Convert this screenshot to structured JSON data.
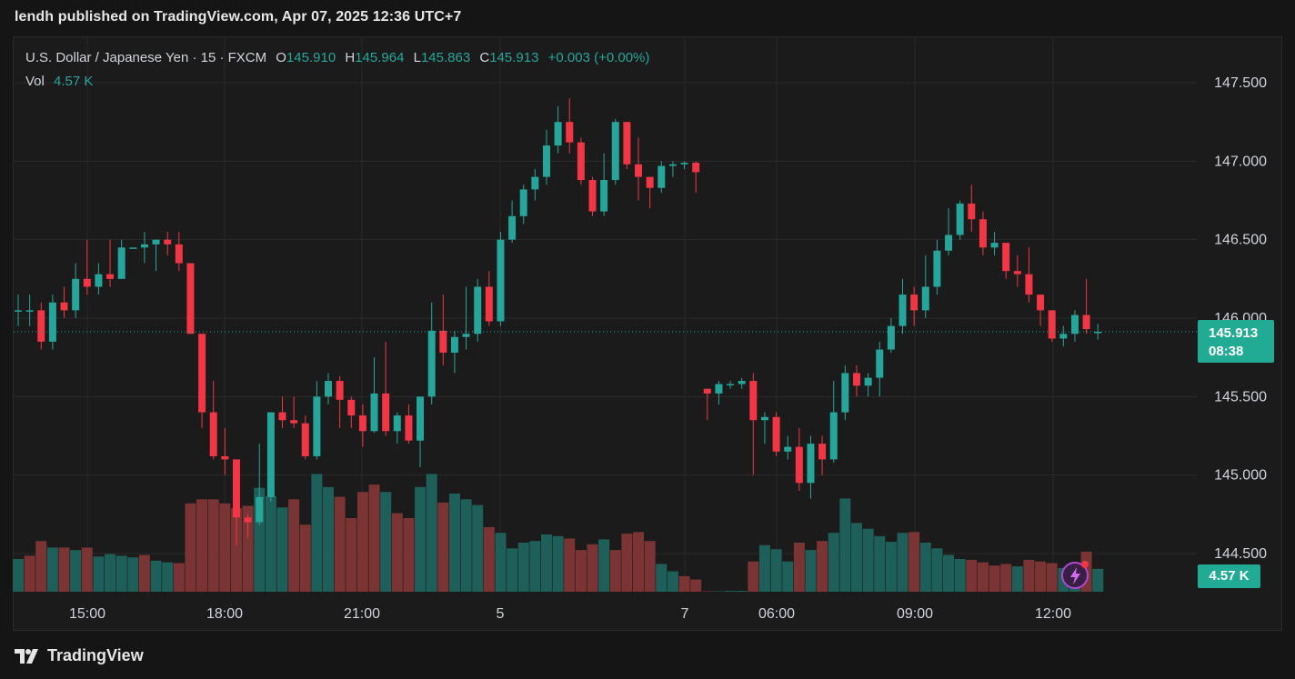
{
  "header": {
    "publish_text": "lendh published on TradingView.com, Apr 07, 2025 12:36 UTC+7"
  },
  "legend": {
    "symbol": "U.S. Dollar / Japanese Yen · 15 · FXCM",
    "open_label": "O",
    "open": "145.910",
    "high_label": "H",
    "high": "145.964",
    "low_label": "L",
    "low": "145.863",
    "close_label": "C",
    "close": "145.913",
    "change": "+0.003 (+0.00%)",
    "vol_label": "Vol",
    "vol_value": "4.57 K"
  },
  "price_tag": {
    "price": "145.913",
    "countdown": "08:38"
  },
  "volume_tag": "4.57 K",
  "footer": {
    "brand": "TradingView"
  },
  "colors": {
    "up": "#26a69a",
    "down": "#f23645",
    "vol_up": "#1f5f5a",
    "vol_down": "#7a3434",
    "background": "#1b1b1b",
    "grid": "#2a2a2a"
  },
  "icons": [
    "tradingview-logo-icon",
    "lightning-alert-icon"
  ],
  "chart_data": {
    "type": "candlestick",
    "symbol": "USDJPY",
    "interval": "15",
    "y_axis_ticks": [
      "147.500",
      "147.000",
      "146.500",
      "146.000",
      "145.500",
      "145.000",
      "144.500"
    ],
    "x_axis_ticks": [
      "15:00",
      "18:00",
      "21:00",
      "5",
      "7",
      "06:00",
      "09:00",
      "12:00"
    ],
    "last_price": 145.913,
    "candles": [
      [
        146.05,
        146.05,
        146.15,
        145.95
      ],
      [
        146.05,
        146.05,
        146.15,
        145.95
      ],
      [
        146.05,
        145.85,
        146.1,
        145.8
      ],
      [
        145.85,
        146.1,
        146.15,
        145.8
      ],
      [
        146.1,
        146.05,
        146.2,
        146.0
      ],
      [
        146.05,
        146.25,
        146.35,
        146.0
      ],
      [
        146.25,
        146.2,
        146.5,
        146.15
      ],
      [
        146.2,
        146.28,
        146.35,
        146.15
      ],
      [
        146.28,
        146.25,
        146.5,
        146.2
      ],
      [
        146.25,
        146.45,
        146.5,
        146.3
      ],
      [
        146.45,
        146.45,
        146.45,
        146.45
      ],
      [
        146.45,
        146.47,
        146.55,
        146.35
      ],
      [
        146.47,
        146.5,
        146.5,
        146.3
      ],
      [
        146.5,
        146.47,
        146.55,
        146.4
      ],
      [
        146.47,
        146.35,
        146.55,
        146.3
      ],
      [
        146.35,
        145.9,
        146.35,
        145.9
      ],
      [
        145.9,
        145.4,
        145.9,
        145.3
      ],
      [
        145.4,
        145.12,
        145.6,
        145.1
      ],
      [
        145.12,
        145.1,
        145.3,
        145.0
      ],
      [
        145.1,
        144.73,
        145.1,
        144.55
      ],
      [
        144.73,
        144.7,
        144.75,
        144.6
      ],
      [
        144.7,
        144.86,
        145.2,
        144.68
      ],
      [
        144.86,
        145.4,
        145.4,
        144.83
      ],
      [
        145.4,
        145.35,
        145.5,
        145.3
      ],
      [
        145.35,
        145.33,
        145.5,
        145.3
      ],
      [
        145.33,
        145.12,
        145.38,
        145.1
      ],
      [
        145.12,
        145.5,
        145.6,
        145.1
      ],
      [
        145.5,
        145.6,
        145.65,
        145.45
      ],
      [
        145.6,
        145.48,
        145.63,
        145.3
      ],
      [
        145.48,
        145.38,
        145.5,
        145.3
      ],
      [
        145.38,
        145.28,
        145.45,
        145.18
      ],
      [
        145.28,
        145.52,
        145.75,
        145.27
      ],
      [
        145.52,
        145.28,
        145.85,
        145.25
      ],
      [
        145.28,
        145.38,
        145.4,
        145.2
      ],
      [
        145.38,
        145.22,
        145.45,
        145.2
      ],
      [
        145.22,
        145.5,
        145.5,
        145.05
      ],
      [
        145.5,
        145.92,
        146.1,
        145.45
      ],
      [
        145.92,
        145.78,
        146.15,
        145.7
      ],
      [
        145.78,
        145.88,
        145.92,
        145.65
      ],
      [
        145.88,
        145.9,
        146.2,
        145.8
      ],
      [
        145.9,
        146.2,
        146.25,
        145.85
      ],
      [
        146.2,
        145.98,
        146.3,
        145.95
      ],
      [
        145.98,
        146.5,
        146.55,
        145.95
      ],
      [
        146.5,
        146.65,
        146.75,
        146.48
      ],
      [
        146.65,
        146.82,
        146.85,
        146.6
      ],
      [
        146.82,
        146.9,
        146.95,
        146.75
      ],
      [
        146.9,
        147.1,
        147.2,
        146.85
      ],
      [
        147.1,
        147.25,
        147.35,
        147.05
      ],
      [
        147.25,
        147.12,
        147.4,
        147.05
      ],
      [
        147.12,
        146.88,
        147.15,
        146.85
      ],
      [
        146.88,
        146.68,
        146.9,
        146.65
      ],
      [
        146.68,
        146.88,
        147.05,
        146.65
      ],
      [
        146.88,
        147.25,
        147.27,
        146.85
      ],
      [
        147.25,
        146.98,
        147.25,
        146.95
      ],
      [
        146.98,
        146.9,
        147.15,
        146.75
      ],
      [
        146.9,
        146.83,
        146.9,
        146.7
      ],
      [
        146.83,
        146.97,
        147.0,
        146.8
      ],
      [
        146.97,
        146.98,
        147.0,
        146.9
      ],
      [
        146.98,
        146.99,
        147.0,
        146.95
      ],
      [
        146.99,
        146.93,
        147.0,
        146.8
      ],
      [
        145.55,
        145.52,
        145.55,
        145.35
      ],
      [
        145.52,
        145.58,
        145.6,
        145.45
      ],
      [
        145.58,
        145.58,
        145.6,
        145.55
      ],
      [
        145.58,
        145.6,
        145.62,
        145.55
      ],
      [
        145.6,
        145.35,
        145.65,
        145.0
      ],
      [
        145.35,
        145.37,
        145.4,
        145.2
      ],
      [
        145.37,
        145.15,
        145.4,
        145.12
      ],
      [
        145.15,
        145.18,
        145.25,
        145.1
      ],
      [
        145.18,
        144.95,
        145.3,
        144.9
      ],
      [
        144.95,
        145.2,
        145.25,
        144.85
      ],
      [
        145.2,
        145.1,
        145.25,
        145.0
      ],
      [
        145.1,
        145.4,
        145.6,
        145.08
      ],
      [
        145.4,
        145.65,
        145.7,
        145.35
      ],
      [
        145.65,
        145.57,
        145.7,
        145.5
      ],
      [
        145.57,
        145.62,
        145.65,
        145.5
      ],
      [
        145.62,
        145.8,
        145.85,
        145.5
      ],
      [
        145.8,
        145.95,
        146.0,
        145.78
      ],
      [
        145.95,
        146.15,
        146.25,
        145.9
      ],
      [
        146.15,
        146.05,
        146.2,
        145.95
      ],
      [
        146.05,
        146.2,
        146.4,
        146.0
      ],
      [
        146.2,
        146.43,
        146.5,
        146.15
      ],
      [
        146.43,
        146.53,
        146.7,
        146.4
      ],
      [
        146.53,
        146.73,
        146.75,
        146.5
      ],
      [
        146.73,
        146.63,
        146.85,
        146.55
      ],
      [
        146.63,
        146.45,
        146.68,
        146.4
      ],
      [
        146.45,
        146.48,
        146.55,
        146.4
      ],
      [
        146.48,
        146.3,
        146.48,
        146.25
      ],
      [
        146.3,
        146.28,
        146.4,
        146.2
      ],
      [
        146.28,
        146.15,
        146.45,
        146.1
      ],
      [
        146.15,
        146.05,
        146.15,
        145.95
      ],
      [
        146.05,
        145.87,
        146.05,
        145.85
      ],
      [
        145.87,
        145.9,
        145.95,
        145.82
      ],
      [
        145.9,
        146.02,
        146.05,
        145.85
      ],
      [
        146.02,
        145.93,
        146.25,
        145.9
      ],
      [
        145.91,
        145.913,
        145.964,
        145.863
      ]
    ],
    "volume": [
      [
        40,
        "up"
      ],
      [
        44,
        "down"
      ],
      [
        62,
        "down"
      ],
      [
        54,
        "up"
      ],
      [
        54,
        "down"
      ],
      [
        51,
        "up"
      ],
      [
        54,
        "down"
      ],
      [
        43,
        "up"
      ],
      [
        46,
        "up"
      ],
      [
        44,
        "up"
      ],
      [
        42,
        "up"
      ],
      [
        45,
        "down"
      ],
      [
        38,
        "up"
      ],
      [
        36,
        "up"
      ],
      [
        35,
        "down"
      ],
      [
        108,
        "down"
      ],
      [
        113,
        "down"
      ],
      [
        113,
        "down"
      ],
      [
        108,
        "down"
      ],
      [
        102,
        "down"
      ],
      [
        105,
        "down"
      ],
      [
        127,
        "up"
      ],
      [
        117,
        "up"
      ],
      [
        103,
        "up"
      ],
      [
        113,
        "down"
      ],
      [
        82,
        "down"
      ],
      [
        144,
        "up"
      ],
      [
        128,
        "up"
      ],
      [
        116,
        "down"
      ],
      [
        90,
        "down"
      ],
      [
        122,
        "down"
      ],
      [
        131,
        "down"
      ],
      [
        122,
        "up"
      ],
      [
        96,
        "down"
      ],
      [
        90,
        "down"
      ],
      [
        128,
        "up"
      ],
      [
        144,
        "up"
      ],
      [
        109,
        "down"
      ],
      [
        120,
        "up"
      ],
      [
        113,
        "up"
      ],
      [
        106,
        "up"
      ],
      [
        79,
        "down"
      ],
      [
        72,
        "up"
      ],
      [
        53,
        "up"
      ],
      [
        60,
        "up"
      ],
      [
        62,
        "up"
      ],
      [
        70,
        "up"
      ],
      [
        68,
        "up"
      ],
      [
        65,
        "down"
      ],
      [
        51,
        "down"
      ],
      [
        58,
        "down"
      ],
      [
        64,
        "up"
      ],
      [
        51,
        "down"
      ],
      [
        71,
        "down"
      ],
      [
        73,
        "down"
      ],
      [
        62,
        "down"
      ],
      [
        34,
        "up"
      ],
      [
        25,
        "up"
      ],
      [
        19,
        "down"
      ],
      [
        15,
        "down"
      ],
      [
        0,
        "down"
      ],
      [
        0,
        "up"
      ],
      [
        1,
        "up"
      ],
      [
        1,
        "up"
      ],
      [
        37,
        "down"
      ],
      [
        57,
        "up"
      ],
      [
        52,
        "up"
      ],
      [
        37,
        "up"
      ],
      [
        60,
        "down"
      ],
      [
        51,
        "up"
      ],
      [
        62,
        "down"
      ],
      [
        72,
        "up"
      ],
      [
        114,
        "up"
      ],
      [
        84,
        "up"
      ],
      [
        77,
        "up"
      ],
      [
        68,
        "up"
      ],
      [
        61,
        "up"
      ],
      [
        72,
        "up"
      ],
      [
        73,
        "down"
      ],
      [
        60,
        "up"
      ],
      [
        53,
        "up"
      ],
      [
        45,
        "up"
      ],
      [
        40,
        "up"
      ],
      [
        39,
        "down"
      ],
      [
        36,
        "down"
      ],
      [
        32,
        "down"
      ],
      [
        34,
        "down"
      ],
      [
        31,
        "up"
      ],
      [
        39,
        "down"
      ],
      [
        37,
        "down"
      ],
      [
        35,
        "down"
      ],
      [
        29,
        "up"
      ],
      [
        31,
        "up"
      ],
      [
        49,
        "down"
      ],
      [
        28,
        "up"
      ]
    ]
  }
}
